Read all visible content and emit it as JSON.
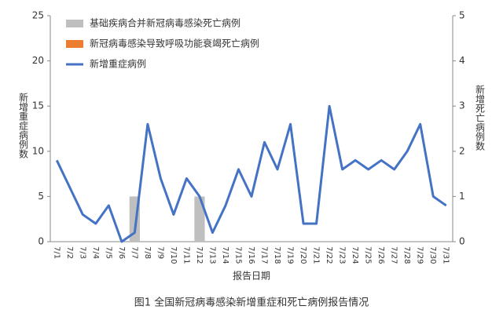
{
  "chart_data": {
    "type": "combo",
    "caption": "图1 全国新冠病毒感染新增重症和死亡病例报告情况",
    "x_label": "报告日期",
    "y_label": "新增重症病例数",
    "y2_label": "新增死亡病例数",
    "categories": [
      "7/1",
      "7/2",
      "7/3",
      "7/4",
      "7/5",
      "7/6",
      "7/7",
      "7/8",
      "7/9",
      "7/10",
      "7/11",
      "7/12",
      "7/13",
      "7/14",
      "7/15",
      "7/16",
      "7/17",
      "7/18",
      "7/19",
      "7/20",
      "7/21",
      "7/22",
      "7/23",
      "7/24",
      "7/25",
      "7/26",
      "7/27",
      "7/28",
      "7/29",
      "7/30",
      "7/31"
    ],
    "series": [
      {
        "name": "基础疾病合并新冠病毒感染死亡病例",
        "type": "bar",
        "axis": "y2",
        "color": "#bfbfbf",
        "values": [
          0,
          0,
          0,
          0,
          0,
          0,
          1,
          0,
          0,
          0,
          0,
          1,
          0,
          0,
          0,
          0,
          0,
          0,
          0,
          0,
          0,
          0,
          0,
          0,
          0,
          0,
          0,
          0,
          0,
          0,
          0
        ]
      },
      {
        "name": "新冠病毒感染导致呼吸功能衰竭死亡病例",
        "type": "bar",
        "axis": "y2",
        "color": "#ed7d31",
        "values": [
          0,
          0,
          0,
          0,
          0,
          0,
          0,
          0,
          0,
          0,
          0,
          0,
          0,
          0,
          0,
          0,
          0,
          0,
          0,
          0,
          0,
          0,
          0,
          0,
          0,
          0,
          0,
          0,
          0,
          0,
          0
        ]
      },
      {
        "name": "新增重症病例",
        "type": "line",
        "color": "#4472c4",
        "values": [
          9,
          6,
          3,
          2,
          4,
          0,
          1,
          13,
          7,
          3,
          7,
          5,
          1,
          4,
          8,
          5,
          11,
          8,
          13,
          2,
          2,
          15,
          8,
          9,
          8,
          9,
          8,
          10,
          13,
          5,
          4
        ]
      }
    ],
    "ylim": [
      0,
      25
    ],
    "yticks": [
      0,
      5,
      10,
      15,
      20,
      25
    ],
    "y2lim": [
      0,
      5
    ],
    "y2ticks": [
      0,
      1,
      2,
      3,
      4,
      5
    ]
  }
}
